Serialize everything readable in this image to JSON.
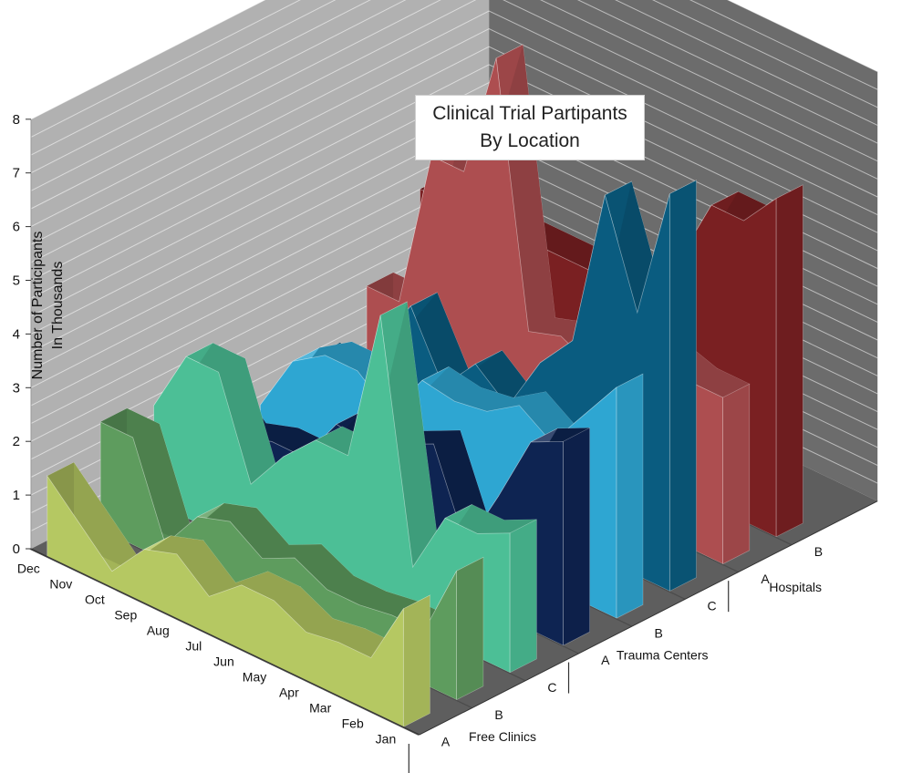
{
  "chart_data": {
    "type": "3d-area",
    "title_lines": [
      "Clinical Trial Partipants",
      "By Location"
    ],
    "ylabel_lines": [
      "Number of Participants",
      "In Thousands"
    ],
    "ylim": [
      0,
      8
    ],
    "yticks": [
      "0",
      "1",
      "2",
      "3",
      "4",
      "5",
      "6",
      "7",
      "8"
    ],
    "months": [
      "Jan",
      "Feb",
      "Mar",
      "Apr",
      "May",
      "Jun",
      "Jul",
      "Aug",
      "Sep",
      "Oct",
      "Nov",
      "Dec"
    ],
    "groups": [
      {
        "name": "Free Clinics",
        "categories": [
          "A",
          "B",
          "C"
        ]
      },
      {
        "name": "Trauma Centers",
        "categories": [
          "A",
          "B",
          "C"
        ]
      },
      {
        "name": "Hospitals",
        "categories": [
          "A",
          "B"
        ]
      }
    ],
    "series": [
      {
        "group": "Free Clinics",
        "label": "A",
        "color": "#b5c862",
        "values": [
          2.2,
          1.0,
          1.0,
          0.9,
          1.2,
          1.2,
          0.7,
          1.2,
          1.0,
          0.3,
          0.9,
          1.5
        ]
      },
      {
        "group": "Free Clinics",
        "label": "B",
        "color": "#5e9c5e",
        "values": [
          2.4,
          1.0,
          1.0,
          0.9,
          0.9,
          1.2,
          0.9,
          1.3,
          1.1,
          0.3,
          2.0,
          2.0
        ]
      },
      {
        "group": "Free Clinics",
        "label": "C",
        "color": "#4cbf96",
        "values": [
          2.6,
          2.3,
          2.3,
          1.1,
          5.5,
          2.6,
          2.6,
          2.0,
          1.2,
          3.0,
          3.0,
          1.8
        ]
      },
      {
        "group": "Trauma Centers",
        "label": "A",
        "color": "#0e2452",
        "values": [
          3.8,
          3.5,
          2.2,
          1.0,
          2.6,
          2.3,
          2.0,
          2.1,
          1.2,
          1.2,
          1.0,
          1.6
        ]
      },
      {
        "group": "Trauma Centers",
        "label": "B",
        "color": "#2ea6d2",
        "values": [
          4.3,
          3.5,
          2.7,
          3.1,
          2.7,
          2.6,
          2.7,
          1.8,
          2.3,
          2.3,
          1.9,
          0.8
        ]
      },
      {
        "group": "Trauma Centers",
        "label": "C",
        "color": "#0a5c80",
        "values": [
          7.4,
          4.9,
          6.8,
          3.8,
          3.1,
          2.0,
          2.5,
          1.8,
          3.0,
          2.0,
          1.0,
          1.2
        ]
      },
      {
        "group": "Hospitals",
        "label": "A",
        "color": "#ad4e50",
        "values": [
          3.1,
          3.1,
          3.3,
          3.5,
          2.5,
          2.8,
          2.6,
          7.4,
          5.0,
          5.0,
          2.0,
          2.0
        ]
      },
      {
        "group": "Hospitals",
        "label": "B",
        "color": "#7a2022",
        "values": [
          6.3,
          5.6,
          5.6,
          4.3,
          3.3,
          3.3,
          3.3,
          3.3,
          3.3,
          3.3,
          3.3,
          3.3
        ]
      }
    ]
  }
}
